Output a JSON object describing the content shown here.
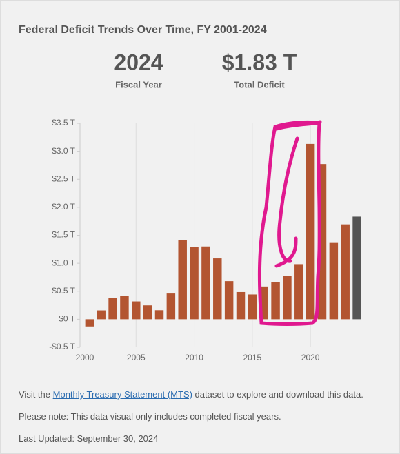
{
  "chart_data": {
    "type": "bar",
    "title": "Federal Deficit Trends Over Time, FY 2001-2024",
    "x": [
      2001,
      2002,
      2003,
      2004,
      2005,
      2006,
      2007,
      2008,
      2009,
      2010,
      2011,
      2012,
      2013,
      2014,
      2015,
      2016,
      2017,
      2018,
      2019,
      2020,
      2021,
      2022,
      2023,
      2024
    ],
    "values": [
      -0.128,
      0.158,
      0.378,
      0.413,
      0.318,
      0.248,
      0.161,
      0.459,
      1.413,
      1.294,
      1.3,
      1.087,
      0.68,
      0.485,
      0.442,
      0.585,
      0.665,
      0.779,
      0.984,
      3.132,
      2.772,
      1.375,
      1.695,
      1.833
    ],
    "color": "#b35531",
    "highlight_color": "#555555",
    "xlim": [
      2000,
      2024.5
    ],
    "xticks": [
      2000,
      2005,
      2010,
      2015,
      2020
    ],
    "ylim": [
      -0.5,
      3.5
    ],
    "yticks": [
      {
        "value": -0.5,
        "label": "-$0.5 T"
      },
      {
        "value": 0,
        "label": "$0 T"
      },
      {
        "value": 0.5,
        "label": "$0.5 T"
      },
      {
        "value": 1,
        "label": "$1.0 T"
      },
      {
        "value": 1.5,
        "label": "$1.5 T"
      },
      {
        "value": 2,
        "label": "$2.0 T"
      },
      {
        "value": 2.5,
        "label": "$2.5 T"
      },
      {
        "value": 3,
        "label": "$3.0 T"
      },
      {
        "value": 3.5,
        "label": "$3.5 T"
      }
    ],
    "grid": "x"
  },
  "stats": [
    {
      "value": "2024",
      "label": "Fiscal Year"
    },
    {
      "value": "$1.83 T",
      "label": "Total Deficit"
    }
  ],
  "notes": {
    "visit_before": "Visit the",
    "link": "Monthly Treasury Statement (MTS)",
    "visit_after": "dataset to explore and download this data.",
    "note": "Please note: This data visual only includes completed fiscal years.",
    "updated": "Last Updated: September 30, 2024"
  }
}
